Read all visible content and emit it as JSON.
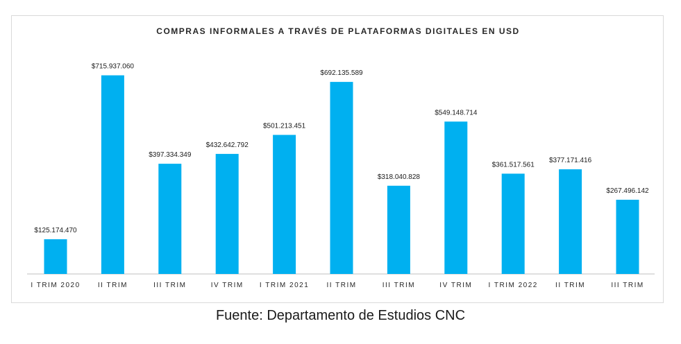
{
  "source_note": "Fuente: Departamento de Estudios CNC",
  "colors": {
    "bar": "#00b0f0"
  },
  "chart_data": {
    "type": "bar",
    "title": "COMPRAS INFORMALES A TRAVÉS DE PLATAFORMAS DIGITALES EN USD",
    "xlabel": "",
    "ylabel": "",
    "categories": [
      "I TRIM 2020",
      "II TRIM",
      "III TRIM",
      "IV TRIM",
      "I TRIM 2021",
      "II TRIM",
      "III TRIM",
      "IV TRIM",
      "I TRIM 2022",
      "II TRIM",
      "III TRIM"
    ],
    "values": [
      125174470,
      715937060,
      397334349,
      432642792,
      501213451,
      692135589,
      318040828,
      549148714,
      361517561,
      377171416,
      267496142
    ],
    "data_labels": [
      "$125.174.470",
      "$715.937.060",
      "$397.334.349",
      "$432.642.792",
      "$501.213.451",
      "$692.135.589",
      "$318.040.828",
      "$549.148.714",
      "$361.517.561",
      "$377.171.416",
      "$267.496.142"
    ],
    "ylim": [
      0,
      720000000
    ],
    "grid": false,
    "legend": false
  }
}
